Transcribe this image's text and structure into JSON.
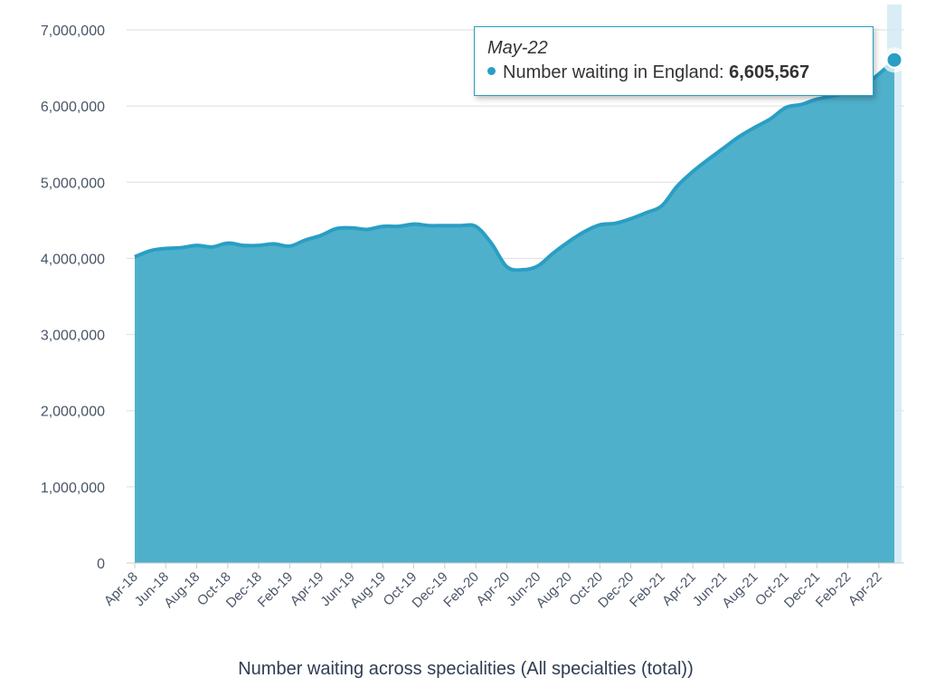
{
  "chart_data": {
    "type": "area",
    "xlabel": "Number waiting across specialities (All specialties (total))",
    "ylabel": "",
    "ylim": [
      0,
      7000000
    ],
    "yticks": [
      "0",
      "1,000,000",
      "2,000,000",
      "3,000,000",
      "4,000,000",
      "5,000,000",
      "6,000,000",
      "7,000,000"
    ],
    "grid": true,
    "colors": {
      "fill": "#4fb0cb",
      "line": "#2a9ec4"
    },
    "x": [
      "Apr-18",
      "May-18",
      "Jun-18",
      "Jul-18",
      "Aug-18",
      "Sep-18",
      "Oct-18",
      "Nov-18",
      "Dec-18",
      "Jan-19",
      "Feb-19",
      "Mar-19",
      "Apr-19",
      "May-19",
      "Jun-19",
      "Jul-19",
      "Aug-19",
      "Sep-19",
      "Oct-19",
      "Nov-19",
      "Dec-19",
      "Jan-20",
      "Feb-20",
      "Mar-20",
      "Apr-20",
      "May-20",
      "Jun-20",
      "Jul-20",
      "Aug-20",
      "Sep-20",
      "Oct-20",
      "Nov-20",
      "Dec-20",
      "Jan-21",
      "Feb-21",
      "Mar-21",
      "Apr-21",
      "May-21",
      "Jun-21",
      "Jul-21",
      "Aug-21",
      "Sep-21",
      "Oct-21",
      "Nov-21",
      "Dec-21",
      "Jan-22",
      "Feb-22",
      "Mar-22",
      "Apr-22",
      "May-22"
    ],
    "xtick_labels": [
      "Apr-18",
      "Jun-18",
      "Aug-18",
      "Oct-18",
      "Dec-18",
      "Feb-19",
      "Apr-19",
      "Jun-19",
      "Aug-19",
      "Oct-19",
      "Dec-19",
      "Feb-20",
      "Apr-20",
      "Jun-20",
      "Aug-20",
      "Oct-20",
      "Dec-20",
      "Feb-21",
      "Apr-21",
      "Jun-21",
      "Aug-21",
      "Oct-21",
      "Dec-21",
      "Feb-22",
      "Apr-22"
    ],
    "series": [
      {
        "name": "Number waiting in England",
        "values": [
          4020000,
          4100000,
          4130000,
          4140000,
          4170000,
          4150000,
          4200000,
          4170000,
          4170000,
          4190000,
          4160000,
          4240000,
          4300000,
          4390000,
          4400000,
          4380000,
          4420000,
          4420000,
          4450000,
          4430000,
          4430000,
          4430000,
          4420000,
          4200000,
          3890000,
          3850000,
          3900000,
          4070000,
          4220000,
          4350000,
          4440000,
          4460000,
          4520000,
          4600000,
          4690000,
          4950000,
          5140000,
          5300000,
          5450000,
          5600000,
          5720000,
          5830000,
          5980000,
          6020000,
          6090000,
          6130000,
          6180000,
          6270000,
          6420000,
          6605567
        ]
      }
    ]
  },
  "tooltip": {
    "date": "May-22",
    "series_label": "Number waiting in England:",
    "value": "6,605,567"
  }
}
